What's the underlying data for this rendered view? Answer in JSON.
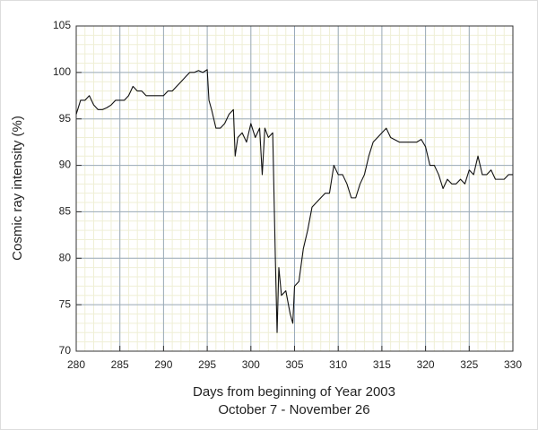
{
  "chart_data": {
    "type": "line",
    "y_label": "Cosmic ray intensity (%)",
    "x_label": "Days from beginning of Year 2003",
    "x_sublabel": "October 7  - November 26",
    "x": [
      280,
      280.5,
      281,
      281.5,
      282,
      282.5,
      283,
      283.5,
      284,
      284.5,
      285,
      285.5,
      286,
      286.5,
      287,
      287.5,
      288,
      288.5,
      289,
      289.5,
      290,
      290.5,
      291,
      291.5,
      292,
      292.5,
      293,
      293.5,
      294,
      294.5,
      295,
      295.2,
      295.5,
      296,
      296.5,
      297,
      297.5,
      298,
      298.2,
      298.5,
      299,
      299.5,
      300,
      300.5,
      301,
      301.3,
      301.6,
      302,
      302.5,
      302.8,
      303,
      303.2,
      303.5,
      304,
      304.5,
      304.8,
      305,
      305.5,
      306,
      306.5,
      307,
      307.5,
      308,
      308.5,
      309,
      309.5,
      310,
      310.5,
      311,
      311.5,
      312,
      312.5,
      313,
      313.5,
      314,
      314.5,
      315,
      315.5,
      316,
      317,
      318,
      319,
      319.5,
      320,
      320.5,
      321,
      321.5,
      322,
      322.5,
      323,
      323.5,
      324,
      324.5,
      325,
      325.5,
      326,
      326.5,
      327,
      327.5,
      328,
      328.5,
      329,
      329.5,
      330
    ],
    "values": [
      95.5,
      97,
      97,
      97.5,
      96.5,
      96,
      96,
      96.2,
      96.5,
      97,
      97,
      97,
      97.5,
      98.5,
      98,
      98,
      97.5,
      97.5,
      97.5,
      97.5,
      97.5,
      98,
      98,
      98.5,
      99,
      99.5,
      100,
      100,
      100.2,
      100,
      100.3,
      97,
      96,
      94,
      94,
      94.5,
      95.5,
      96,
      91,
      93,
      93.5,
      92.5,
      94.5,
      93,
      94,
      89,
      94,
      93,
      93.5,
      80,
      72,
      79,
      76,
      76.5,
      74,
      73,
      77,
      77.5,
      81,
      83,
      85.5,
      86,
      86.5,
      87,
      87,
      90,
      89,
      89,
      88,
      86.5,
      86.5,
      88,
      89,
      91,
      92.5,
      93,
      93.5,
      94,
      93,
      92.5,
      92.5,
      92.5,
      92.8,
      92,
      90,
      90,
      89,
      87.5,
      88.5,
      88,
      88,
      88.5,
      88,
      89.5,
      89,
      91,
      89,
      89,
      89.5,
      88.5,
      88.5,
      88.5,
      89,
      89
    ],
    "color": "#111111",
    "xlim": [
      280,
      330
    ],
    "xticks": [
      280,
      285,
      290,
      295,
      300,
      305,
      310,
      315,
      320,
      325,
      330
    ],
    "ylim": [
      70,
      105
    ],
    "yticks": [
      70,
      75,
      80,
      85,
      90,
      95,
      100,
      105
    ],
    "grid": true,
    "minor_grid": true
  }
}
